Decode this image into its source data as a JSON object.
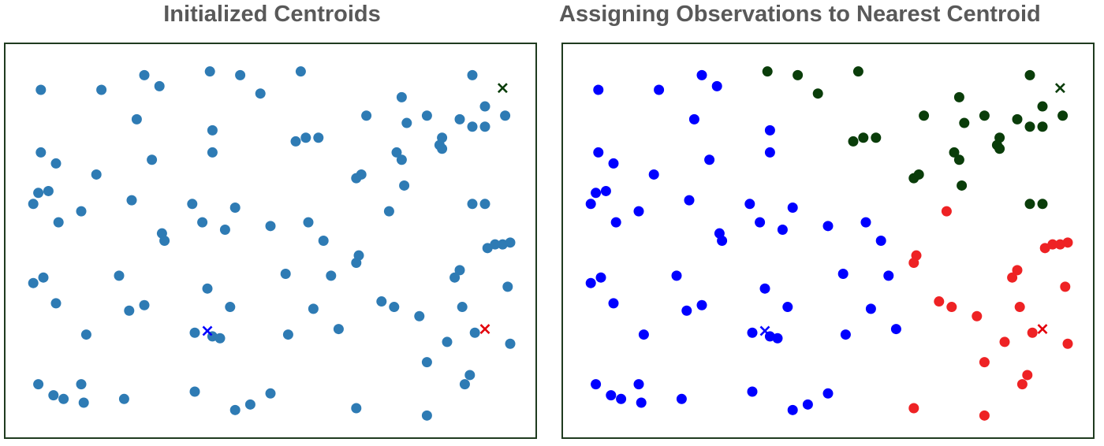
{
  "chart_data": [
    {
      "type": "scatter",
      "title": "Initialized Centroids",
      "xlim": [
        0,
        100
      ],
      "ylim": [
        0,
        100
      ],
      "grid": false,
      "point_color": "#2e7bb4",
      "frame_color": "#1f3b1f",
      "points": [
        [
          4.5,
          91
        ],
        [
          16.5,
          91
        ],
        [
          25,
          95
        ],
        [
          28,
          92
        ],
        [
          38,
          96
        ],
        [
          44,
          95
        ],
        [
          48,
          90
        ],
        [
          56,
          96
        ],
        [
          76,
          89
        ],
        [
          90,
          95
        ],
        [
          23.5,
          83
        ],
        [
          38.5,
          80
        ],
        [
          55,
          77
        ],
        [
          57,
          78
        ],
        [
          59.5,
          78
        ],
        [
          69,
          84
        ],
        [
          77,
          82
        ],
        [
          81,
          84
        ],
        [
          84,
          78
        ],
        [
          87.5,
          83
        ],
        [
          90,
          81
        ],
        [
          92.5,
          81
        ],
        [
          96.5,
          84
        ],
        [
          92.5,
          86.5
        ],
        [
          4.5,
          74
        ],
        [
          7.5,
          71
        ],
        [
          26.5,
          72
        ],
        [
          38.5,
          74
        ],
        [
          75,
          74
        ],
        [
          76,
          72
        ],
        [
          83.5,
          76
        ],
        [
          84,
          75
        ],
        [
          15.5,
          68
        ],
        [
          4,
          63
        ],
        [
          6,
          63.5
        ],
        [
          3,
          60
        ],
        [
          12.5,
          58
        ],
        [
          22.5,
          61
        ],
        [
          34.5,
          60
        ],
        [
          43,
          59
        ],
        [
          67,
          67
        ],
        [
          68,
          68
        ],
        [
          76.5,
          65
        ],
        [
          73.5,
          58
        ],
        [
          90,
          60
        ],
        [
          92.5,
          60
        ],
        [
          8,
          55
        ],
        [
          28.5,
          52
        ],
        [
          29,
          50
        ],
        [
          36.5,
          55
        ],
        [
          41,
          53
        ],
        [
          50,
          54
        ],
        [
          57.5,
          55
        ],
        [
          60.5,
          50
        ],
        [
          67.5,
          46
        ],
        [
          67,
          44
        ],
        [
          93,
          48
        ],
        [
          94.5,
          49
        ],
        [
          96,
          49
        ],
        [
          97.5,
          49.5
        ],
        [
          5,
          40
        ],
        [
          3,
          38.5
        ],
        [
          20,
          40.5
        ],
        [
          37.5,
          37
        ],
        [
          53,
          41
        ],
        [
          62,
          40.5
        ],
        [
          87.5,
          42
        ],
        [
          86.5,
          40
        ],
        [
          97,
          37.5
        ],
        [
          7.5,
          33
        ],
        [
          22,
          31
        ],
        [
          25,
          32.5
        ],
        [
          42,
          32
        ],
        [
          58.5,
          31.5
        ],
        [
          72,
          33.5
        ],
        [
          74.5,
          32
        ],
        [
          79.5,
          29.5
        ],
        [
          88,
          32
        ],
        [
          13.5,
          24.5
        ],
        [
          35,
          25
        ],
        [
          38.5,
          24
        ],
        [
          40,
          23.5
        ],
        [
          53.5,
          24.5
        ],
        [
          63.5,
          26
        ],
        [
          85,
          22.5
        ],
        [
          90.5,
          25
        ],
        [
          97.5,
          22
        ],
        [
          81,
          17
        ],
        [
          89.5,
          13.5
        ],
        [
          4,
          11
        ],
        [
          12.5,
          11
        ],
        [
          7,
          8
        ],
        [
          9,
          7
        ],
        [
          13,
          6
        ],
        [
          21,
          7
        ],
        [
          35,
          9
        ],
        [
          50,
          8.5
        ],
        [
          43,
          4
        ],
        [
          46,
          5.5
        ],
        [
          67,
          4.5
        ],
        [
          81,
          2.5
        ],
        [
          88.5,
          11
        ]
      ],
      "centroids": [
        {
          "x": 37.5,
          "y": 25.5,
          "color": "#0000ff"
        },
        {
          "x": 92.5,
          "y": 26,
          "color": "#e3000b"
        },
        {
          "x": 96,
          "y": 91.5,
          "color": "#0a3d0a"
        }
      ]
    },
    {
      "type": "scatter",
      "title": "Assigning Observations to Nearest Centroid",
      "xlim": [
        0,
        100
      ],
      "ylim": [
        0,
        100
      ],
      "grid": false,
      "frame_color": "#1f3b1f",
      "clusters": [
        {
          "color": "#0000ff",
          "points": [
            [
              4.5,
              91
            ],
            [
              16.5,
              91
            ],
            [
              25,
              95
            ],
            [
              28,
              92
            ],
            [
              23.5,
              83
            ],
            [
              38.5,
              80
            ],
            [
              38.5,
              74
            ],
            [
              4.5,
              74
            ],
            [
              7.5,
              71
            ],
            [
              26.5,
              72
            ],
            [
              15.5,
              68
            ],
            [
              4,
              63
            ],
            [
              6,
              63.5
            ],
            [
              3,
              60
            ],
            [
              12.5,
              58
            ],
            [
              22.5,
              61
            ],
            [
              34.5,
              60
            ],
            [
              43,
              59
            ],
            [
              8,
              55
            ],
            [
              28.5,
              52
            ],
            [
              29,
              50
            ],
            [
              36.5,
              55
            ],
            [
              41,
              53
            ],
            [
              50,
              54
            ],
            [
              57.5,
              55
            ],
            [
              60.5,
              50
            ],
            [
              5,
              40
            ],
            [
              3,
              38.5
            ],
            [
              20,
              40.5
            ],
            [
              37.5,
              37
            ],
            [
              53,
              41
            ],
            [
              62,
              40.5
            ],
            [
              7.5,
              33
            ],
            [
              22,
              31
            ],
            [
              25,
              32.5
            ],
            [
              42,
              32
            ],
            [
              58.5,
              31.5
            ],
            [
              35,
              25
            ],
            [
              38.5,
              24
            ],
            [
              40,
              23.5
            ],
            [
              53.5,
              24.5
            ],
            [
              63.5,
              26
            ],
            [
              13.5,
              24.5
            ],
            [
              4,
              11
            ],
            [
              12.5,
              11
            ],
            [
              7,
              8
            ],
            [
              9,
              7
            ],
            [
              13,
              6
            ],
            [
              21,
              7
            ],
            [
              35,
              9
            ],
            [
              50,
              8.5
            ],
            [
              43,
              4
            ],
            [
              46,
              5.5
            ]
          ]
        },
        {
          "color": "#0a3d0a",
          "points": [
            [
              38,
              96
            ],
            [
              44,
              95
            ],
            [
              48,
              90
            ],
            [
              56,
              96
            ],
            [
              76,
              89
            ],
            [
              90,
              95
            ],
            [
              55,
              77
            ],
            [
              57,
              78
            ],
            [
              59.5,
              78
            ],
            [
              69,
              84
            ],
            [
              77,
              82
            ],
            [
              81,
              84
            ],
            [
              84,
              78
            ],
            [
              87.5,
              83
            ],
            [
              90,
              81
            ],
            [
              92.5,
              81
            ],
            [
              96.5,
              84
            ],
            [
              92.5,
              86.5
            ],
            [
              75,
              74
            ],
            [
              76,
              72
            ],
            [
              83.5,
              76
            ],
            [
              84,
              75
            ],
            [
              67,
              67
            ],
            [
              68,
              68
            ],
            [
              76.5,
              65
            ],
            [
              90,
              60
            ],
            [
              92.5,
              60
            ]
          ]
        },
        {
          "color": "#ee2224",
          "points": [
            [
              73.5,
              58
            ],
            [
              67.5,
              46
            ],
            [
              67,
              44
            ],
            [
              93,
              48
            ],
            [
              94.5,
              49
            ],
            [
              96,
              49
            ],
            [
              97.5,
              49.5
            ],
            [
              87.5,
              42
            ],
            [
              86.5,
              40
            ],
            [
              97,
              37.5
            ],
            [
              72,
              33.5
            ],
            [
              74.5,
              32
            ],
            [
              79.5,
              29.5
            ],
            [
              88,
              32
            ],
            [
              85,
              22.5
            ],
            [
              90.5,
              25
            ],
            [
              97.5,
              22
            ],
            [
              81,
              17
            ],
            [
              89.5,
              13.5
            ],
            [
              67,
              4.5
            ],
            [
              81,
              2.5
            ],
            [
              88.5,
              11
            ]
          ]
        }
      ],
      "centroids": [
        {
          "x": 37.5,
          "y": 25.5,
          "color": "#0000ff"
        },
        {
          "x": 92.5,
          "y": 26,
          "color": "#e3000b"
        },
        {
          "x": 96,
          "y": 91.5,
          "color": "#0a3d0a"
        }
      ]
    }
  ]
}
